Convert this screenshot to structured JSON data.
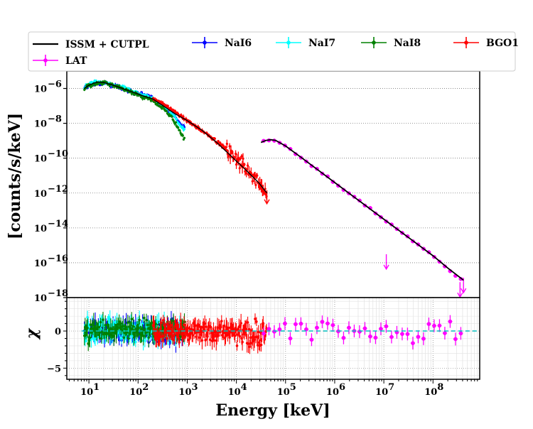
{
  "chart_data": {
    "type": "scatter",
    "title": "",
    "xlabel": "Energy [keV]",
    "top_panel": {
      "ylabel": "[counts/s/keV]",
      "yscale": "log",
      "ylim_exp": [
        -18,
        -5
      ],
      "yticks": [
        {
          "exp": -6,
          "text": "10",
          "sup": "−6"
        },
        {
          "exp": -8,
          "text": "10",
          "sup": "−8"
        },
        {
          "exp": -10,
          "text": "10",
          "sup": "−10"
        },
        {
          "exp": -12,
          "text": "10",
          "sup": "−12"
        },
        {
          "exp": -14,
          "text": "10",
          "sup": "−14"
        },
        {
          "exp": -16,
          "text": "10",
          "sup": "−16"
        },
        {
          "exp": -18,
          "text": "10",
          "sup": "−18"
        }
      ]
    },
    "bottom_panel": {
      "ylabel": "χ",
      "ylim": [
        -6.5,
        4.5
      ],
      "yticks": [
        {
          "value": 0,
          "text": "0"
        },
        {
          "value": -5,
          "text": "−5"
        }
      ]
    },
    "xscale": "log",
    "xlim_exp": [
      0.55,
      8.95
    ],
    "xticks": [
      {
        "exp": 1,
        "text": "10",
        "sup": "1"
      },
      {
        "exp": 2,
        "text": "10",
        "sup": "2"
      },
      {
        "exp": 3,
        "text": "10",
        "sup": "3"
      },
      {
        "exp": 4,
        "text": "10",
        "sup": "4"
      },
      {
        "exp": 5,
        "text": "10",
        "sup": "5"
      },
      {
        "exp": 6,
        "text": "10",
        "sup": "6"
      },
      {
        "exp": 7,
        "text": "10",
        "sup": "7"
      },
      {
        "exp": 8,
        "text": "10",
        "sup": "8"
      }
    ],
    "grid": true,
    "legend": {
      "placement": "top",
      "entries": [
        {
          "label": "ISSM + CUTPL",
          "color": "#000000",
          "kind": "line"
        },
        {
          "label": "NaI6",
          "color": "#0000ff",
          "kind": "errorbar"
        },
        {
          "label": "NaI7",
          "color": "#00ffff",
          "kind": "errorbar"
        },
        {
          "label": "NaI8",
          "color": "#008000",
          "kind": "errorbar"
        },
        {
          "label": "BGO1",
          "color": "#ff0000",
          "kind": "errorbar"
        },
        {
          "label": "LAT",
          "color": "#ff00ff",
          "kind": "errorbar"
        }
      ]
    },
    "model": {
      "name": "ISSM + CUTPL",
      "color": "#000000",
      "points": [
        [
          0.9,
          -6.0
        ],
        [
          1.0,
          -5.82
        ],
        [
          1.1,
          -5.69
        ],
        [
          1.2,
          -5.63
        ],
        [
          1.3,
          -5.66
        ],
        [
          1.5,
          -5.82
        ],
        [
          1.8,
          -6.12
        ],
        [
          2.1,
          -6.42
        ],
        [
          2.3,
          -6.6
        ],
        [
          2.5,
          -6.98
        ],
        [
          2.75,
          -7.45
        ],
        [
          3.0,
          -7.85
        ],
        [
          3.3,
          -8.4
        ],
        [
          3.6,
          -9.1
        ],
        [
          3.9,
          -9.9
        ],
        [
          4.2,
          -10.7
        ],
        [
          4.45,
          -11.4
        ],
        [
          4.62,
          -12.0
        ],
        [
          4.5,
          -9.1
        ],
        [
          4.6,
          -8.98
        ],
        [
          4.7,
          -8.94
        ],
        [
          4.8,
          -8.98
        ],
        [
          5.0,
          -9.3
        ],
        [
          5.3,
          -9.92
        ],
        [
          5.6,
          -10.55
        ],
        [
          6.0,
          -11.4
        ],
        [
          6.5,
          -12.45
        ],
        [
          7.0,
          -13.5
        ],
        [
          7.5,
          -14.55
        ],
        [
          8.0,
          -15.6
        ],
        [
          8.3,
          -16.3
        ],
        [
          8.62,
          -17.0
        ]
      ]
    },
    "series": [
      {
        "name": "NaI6",
        "color": "#0000ff",
        "x_range_exp": [
          0.9,
          2.95
        ],
        "spectrum": [
          [
            0.9,
            -6.0
          ],
          [
            1.1,
            -5.72
          ],
          [
            1.3,
            -5.68
          ],
          [
            1.5,
            -5.85
          ],
          [
            1.8,
            -6.1
          ],
          [
            2.1,
            -6.38
          ],
          [
            2.3,
            -6.55
          ],
          [
            2.5,
            -6.95
          ],
          [
            2.7,
            -7.4
          ],
          [
            2.9,
            -8.2
          ]
        ]
      },
      {
        "name": "NaI7",
        "color": "#00ffff",
        "x_range_exp": [
          0.9,
          2.95
        ],
        "spectrum": [
          [
            0.9,
            -5.9
          ],
          [
            1.1,
            -5.64
          ],
          [
            1.3,
            -5.6
          ],
          [
            1.5,
            -5.8
          ],
          [
            1.8,
            -6.05
          ],
          [
            2.1,
            -6.4
          ],
          [
            2.3,
            -6.58
          ],
          [
            2.5,
            -6.98
          ],
          [
            2.7,
            -7.45
          ],
          [
            2.9,
            -8.3
          ]
        ]
      },
      {
        "name": "NaI8",
        "color": "#008000",
        "x_range_exp": [
          0.9,
          2.95
        ],
        "spectrum": [
          [
            0.9,
            -6.0
          ],
          [
            1.1,
            -5.73
          ],
          [
            1.3,
            -5.67
          ],
          [
            1.5,
            -5.85
          ],
          [
            1.8,
            -6.15
          ],
          [
            2.1,
            -6.5
          ],
          [
            2.3,
            -6.7
          ],
          [
            2.5,
            -7.1
          ],
          [
            2.7,
            -7.7
          ],
          [
            2.95,
            -8.95
          ]
        ]
      },
      {
        "name": "BGO1",
        "color": "#ff0000",
        "x_range_exp": [
          2.3,
          4.62
        ],
        "spectrum": [
          [
            2.3,
            -6.55
          ],
          [
            2.6,
            -7.05
          ],
          [
            3.0,
            -7.85
          ],
          [
            3.4,
            -8.6
          ],
          [
            3.8,
            -9.5
          ],
          [
            4.1,
            -10.3
          ],
          [
            4.3,
            -10.9
          ],
          [
            4.5,
            -11.5
          ],
          [
            4.62,
            -12.1
          ]
        ]
      },
      {
        "name": "LAT",
        "color": "#ff00ff",
        "x_range_exp": [
          4.5,
          8.62
        ],
        "spectrum": [
          [
            4.5,
            -9.1
          ],
          [
            4.7,
            -8.94
          ],
          [
            5.0,
            -9.3
          ],
          [
            5.5,
            -10.35
          ],
          [
            6.0,
            -11.4
          ],
          [
            6.5,
            -12.45
          ],
          [
            7.0,
            -13.5
          ],
          [
            7.5,
            -14.55
          ],
          [
            8.0,
            -15.6
          ],
          [
            8.2,
            -16.1
          ],
          [
            8.4,
            -16.6
          ],
          [
            8.62,
            -17.1
          ]
        ],
        "upper_limits_exp": [
          [
            7.05,
            -16.0
          ],
          [
            8.55,
            -17.6
          ],
          [
            8.62,
            -17.35
          ]
        ]
      }
    ],
    "residual_baseline": {
      "value": 0,
      "color": "#00bfbf",
      "style": "dashed"
    }
  }
}
